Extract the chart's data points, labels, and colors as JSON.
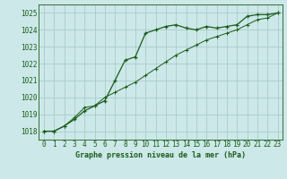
{
  "line1_x": [
    0,
    1,
    2,
    3,
    4,
    5,
    6,
    7,
    8,
    9,
    10,
    11,
    12,
    13,
    14,
    15,
    16,
    17,
    18,
    19,
    20,
    21,
    22,
    23
  ],
  "line1_y": [
    1018.0,
    1018.0,
    1018.3,
    1018.7,
    1019.2,
    1019.5,
    1019.8,
    1021.0,
    1022.2,
    1022.4,
    1023.8,
    1024.0,
    1024.2,
    1024.3,
    1024.1,
    1024.0,
    1024.2,
    1024.1,
    1024.2,
    1024.3,
    1024.8,
    1024.9,
    1024.9,
    1025.0
  ],
  "line2_x": [
    0,
    1,
    2,
    3,
    4,
    5,
    6,
    7,
    8,
    9,
    10,
    11,
    12,
    13,
    14,
    15,
    16,
    17,
    18,
    19,
    20,
    21,
    22,
    23
  ],
  "line2_y": [
    1018.0,
    1018.0,
    1018.3,
    1018.8,
    1019.4,
    1019.5,
    1020.0,
    1020.3,
    1020.6,
    1020.9,
    1021.3,
    1021.7,
    1022.1,
    1022.5,
    1022.8,
    1023.1,
    1023.4,
    1023.6,
    1023.8,
    1024.0,
    1024.3,
    1024.6,
    1024.7,
    1025.0
  ],
  "bg_color": "#cce8e8",
  "grid_color": "#aacccc",
  "line_color": "#1a5c1a",
  "title": "Graphe pression niveau de la mer (hPa)",
  "ylim": [
    1017.5,
    1025.5
  ],
  "xlim": [
    -0.5,
    23.5
  ],
  "yticks": [
    1018,
    1019,
    1020,
    1021,
    1022,
    1023,
    1024,
    1025
  ],
  "xticks": [
    0,
    1,
    2,
    3,
    4,
    5,
    6,
    7,
    8,
    9,
    10,
    11,
    12,
    13,
    14,
    15,
    16,
    17,
    18,
    19,
    20,
    21,
    22,
    23
  ]
}
